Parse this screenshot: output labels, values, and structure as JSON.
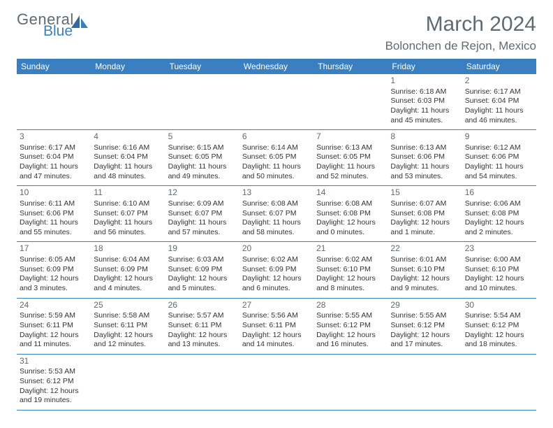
{
  "logo": {
    "general": "General",
    "blue": "Blue"
  },
  "title": "March 2024",
  "location": "Bolonchen de Rejon, Mexico",
  "colors": {
    "header_bg": "#3a7fbf",
    "header_text": "#ffffff",
    "border": "#3a7fbf",
    "text": "#333333",
    "muted": "#5f6b73"
  },
  "weekdays": [
    "Sunday",
    "Monday",
    "Tuesday",
    "Wednesday",
    "Thursday",
    "Friday",
    "Saturday"
  ],
  "cells": [
    {
      "blank": true
    },
    {
      "blank": true
    },
    {
      "blank": true
    },
    {
      "blank": true
    },
    {
      "blank": true
    },
    {
      "day": "1",
      "sunrise": "Sunrise: 6:18 AM",
      "sunset": "Sunset: 6:03 PM",
      "day1": "Daylight: 11 hours",
      "day2": "and 45 minutes."
    },
    {
      "day": "2",
      "sunrise": "Sunrise: 6:17 AM",
      "sunset": "Sunset: 6:04 PM",
      "day1": "Daylight: 11 hours",
      "day2": "and 46 minutes."
    },
    {
      "day": "3",
      "sunrise": "Sunrise: 6:17 AM",
      "sunset": "Sunset: 6:04 PM",
      "day1": "Daylight: 11 hours",
      "day2": "and 47 minutes."
    },
    {
      "day": "4",
      "sunrise": "Sunrise: 6:16 AM",
      "sunset": "Sunset: 6:04 PM",
      "day1": "Daylight: 11 hours",
      "day2": "and 48 minutes."
    },
    {
      "day": "5",
      "sunrise": "Sunrise: 6:15 AM",
      "sunset": "Sunset: 6:05 PM",
      "day1": "Daylight: 11 hours",
      "day2": "and 49 minutes."
    },
    {
      "day": "6",
      "sunrise": "Sunrise: 6:14 AM",
      "sunset": "Sunset: 6:05 PM",
      "day1": "Daylight: 11 hours",
      "day2": "and 50 minutes."
    },
    {
      "day": "7",
      "sunrise": "Sunrise: 6:13 AM",
      "sunset": "Sunset: 6:05 PM",
      "day1": "Daylight: 11 hours",
      "day2": "and 52 minutes."
    },
    {
      "day": "8",
      "sunrise": "Sunrise: 6:13 AM",
      "sunset": "Sunset: 6:06 PM",
      "day1": "Daylight: 11 hours",
      "day2": "and 53 minutes."
    },
    {
      "day": "9",
      "sunrise": "Sunrise: 6:12 AM",
      "sunset": "Sunset: 6:06 PM",
      "day1": "Daylight: 11 hours",
      "day2": "and 54 minutes."
    },
    {
      "day": "10",
      "sunrise": "Sunrise: 6:11 AM",
      "sunset": "Sunset: 6:06 PM",
      "day1": "Daylight: 11 hours",
      "day2": "and 55 minutes."
    },
    {
      "day": "11",
      "sunrise": "Sunrise: 6:10 AM",
      "sunset": "Sunset: 6:07 PM",
      "day1": "Daylight: 11 hours",
      "day2": "and 56 minutes."
    },
    {
      "day": "12",
      "sunrise": "Sunrise: 6:09 AM",
      "sunset": "Sunset: 6:07 PM",
      "day1": "Daylight: 11 hours",
      "day2": "and 57 minutes."
    },
    {
      "day": "13",
      "sunrise": "Sunrise: 6:08 AM",
      "sunset": "Sunset: 6:07 PM",
      "day1": "Daylight: 11 hours",
      "day2": "and 58 minutes."
    },
    {
      "day": "14",
      "sunrise": "Sunrise: 6:08 AM",
      "sunset": "Sunset: 6:08 PM",
      "day1": "Daylight: 12 hours",
      "day2": "and 0 minutes."
    },
    {
      "day": "15",
      "sunrise": "Sunrise: 6:07 AM",
      "sunset": "Sunset: 6:08 PM",
      "day1": "Daylight: 12 hours",
      "day2": "and 1 minute."
    },
    {
      "day": "16",
      "sunrise": "Sunrise: 6:06 AM",
      "sunset": "Sunset: 6:08 PM",
      "day1": "Daylight: 12 hours",
      "day2": "and 2 minutes."
    },
    {
      "day": "17",
      "sunrise": "Sunrise: 6:05 AM",
      "sunset": "Sunset: 6:09 PM",
      "day1": "Daylight: 12 hours",
      "day2": "and 3 minutes."
    },
    {
      "day": "18",
      "sunrise": "Sunrise: 6:04 AM",
      "sunset": "Sunset: 6:09 PM",
      "day1": "Daylight: 12 hours",
      "day2": "and 4 minutes."
    },
    {
      "day": "19",
      "sunrise": "Sunrise: 6:03 AM",
      "sunset": "Sunset: 6:09 PM",
      "day1": "Daylight: 12 hours",
      "day2": "and 5 minutes."
    },
    {
      "day": "20",
      "sunrise": "Sunrise: 6:02 AM",
      "sunset": "Sunset: 6:09 PM",
      "day1": "Daylight: 12 hours",
      "day2": "and 6 minutes."
    },
    {
      "day": "21",
      "sunrise": "Sunrise: 6:02 AM",
      "sunset": "Sunset: 6:10 PM",
      "day1": "Daylight: 12 hours",
      "day2": "and 8 minutes."
    },
    {
      "day": "22",
      "sunrise": "Sunrise: 6:01 AM",
      "sunset": "Sunset: 6:10 PM",
      "day1": "Daylight: 12 hours",
      "day2": "and 9 minutes."
    },
    {
      "day": "23",
      "sunrise": "Sunrise: 6:00 AM",
      "sunset": "Sunset: 6:10 PM",
      "day1": "Daylight: 12 hours",
      "day2": "and 10 minutes."
    },
    {
      "day": "24",
      "sunrise": "Sunrise: 5:59 AM",
      "sunset": "Sunset: 6:11 PM",
      "day1": "Daylight: 12 hours",
      "day2": "and 11 minutes."
    },
    {
      "day": "25",
      "sunrise": "Sunrise: 5:58 AM",
      "sunset": "Sunset: 6:11 PM",
      "day1": "Daylight: 12 hours",
      "day2": "and 12 minutes."
    },
    {
      "day": "26",
      "sunrise": "Sunrise: 5:57 AM",
      "sunset": "Sunset: 6:11 PM",
      "day1": "Daylight: 12 hours",
      "day2": "and 13 minutes."
    },
    {
      "day": "27",
      "sunrise": "Sunrise: 5:56 AM",
      "sunset": "Sunset: 6:11 PM",
      "day1": "Daylight: 12 hours",
      "day2": "and 14 minutes."
    },
    {
      "day": "28",
      "sunrise": "Sunrise: 5:55 AM",
      "sunset": "Sunset: 6:12 PM",
      "day1": "Daylight: 12 hours",
      "day2": "and 16 minutes."
    },
    {
      "day": "29",
      "sunrise": "Sunrise: 5:55 AM",
      "sunset": "Sunset: 6:12 PM",
      "day1": "Daylight: 12 hours",
      "day2": "and 17 minutes."
    },
    {
      "day": "30",
      "sunrise": "Sunrise: 5:54 AM",
      "sunset": "Sunset: 6:12 PM",
      "day1": "Daylight: 12 hours",
      "day2": "and 18 minutes."
    },
    {
      "day": "31",
      "sunrise": "Sunrise: 5:53 AM",
      "sunset": "Sunset: 6:12 PM",
      "day1": "Daylight: 12 hours",
      "day2": "and 19 minutes."
    },
    {
      "blank": true
    },
    {
      "blank": true
    },
    {
      "blank": true
    },
    {
      "blank": true
    },
    {
      "blank": true
    },
    {
      "blank": true
    }
  ]
}
